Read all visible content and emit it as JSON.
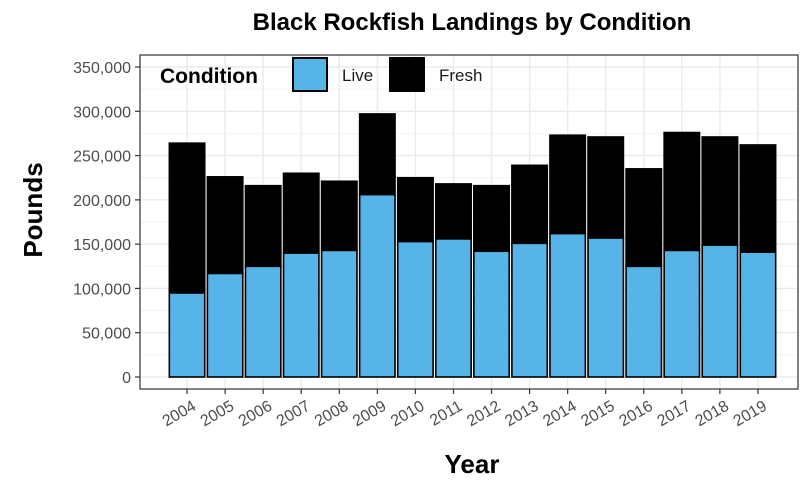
{
  "colors": {
    "live": "#56B4E9",
    "fresh": "#000000",
    "grid": "#ebebeb",
    "panel_border": "#333333"
  },
  "chart_data": {
    "type": "bar",
    "stacked": true,
    "title": "Black Rockfish Landings by Condition",
    "xlabel": "Year",
    "ylabel": "Pounds",
    "ylim": [
      0,
      360000
    ],
    "yticks": [
      0,
      50000,
      100000,
      150000,
      200000,
      250000,
      300000,
      350000
    ],
    "ytick_labels": [
      "0",
      "50,000",
      "100,000",
      "150,000",
      "200,000",
      "250,000",
      "300,000",
      "350,000"
    ],
    "grid": true,
    "legend": {
      "title": "Condition",
      "position": "top-left"
    },
    "categories": [
      "2004",
      "2005",
      "2006",
      "2007",
      "2008",
      "2009",
      "2010",
      "2011",
      "2012",
      "2013",
      "2014",
      "2015",
      "2016",
      "2017",
      "2018",
      "2019"
    ],
    "series": [
      {
        "name": "Live",
        "color": "#56B4E9",
        "values": [
          95000,
          117000,
          125000,
          140000,
          143000,
          206000,
          153000,
          156000,
          142000,
          151000,
          162000,
          157000,
          125000,
          143000,
          149000,
          141000
        ]
      },
      {
        "name": "Fresh",
        "color": "#000000",
        "values": [
          169000,
          109000,
          91000,
          90000,
          78000,
          91000,
          72000,
          62000,
          74000,
          88000,
          111000,
          114000,
          110000,
          133000,
          122000,
          121000
        ]
      }
    ]
  }
}
